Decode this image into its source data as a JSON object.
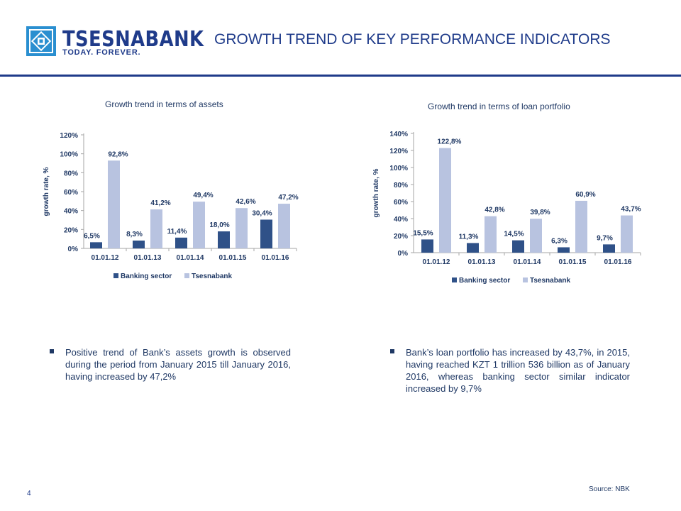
{
  "header": {
    "logo_name": "TSESNABANK",
    "logo_tagline": "TODAY. FOREVER.",
    "title": "GROWTH TREND OF KEY PERFORMANCE INDICATORS"
  },
  "colors": {
    "brand": "#1f3b8a",
    "banking_sector": "#2f5188",
    "tsesnabank": "#b8c3e0",
    "text": "#1f3864"
  },
  "chart_data": [
    {
      "type": "bar",
      "title": "Growth trend in terms of assets",
      "ylabel": "growth rate, %",
      "xlabel": "",
      "categories": [
        "01.01.12",
        "01.01.13",
        "01.01.14",
        "01.01.15",
        "01.01.16"
      ],
      "series": [
        {
          "name": "Banking sector",
          "values": [
            6.5,
            8.3,
            11.4,
            18.0,
            30.4
          ],
          "labels": [
            "6,5%",
            "8,3%",
            "11,4%",
            "18,0%",
            "30,4%"
          ]
        },
        {
          "name": "Tsesnabank",
          "values": [
            92.8,
            41.2,
            49.4,
            42.6,
            47.2
          ],
          "labels": [
            "92,8%",
            "41,2%",
            "49,4%",
            "42,6%",
            "47,2%"
          ]
        }
      ],
      "ylim": [
        0,
        120
      ],
      "yticks": [
        "0%",
        "20%",
        "40%",
        "60%",
        "80%",
        "100%",
        "120%"
      ],
      "legend": "bottom",
      "grid": false
    },
    {
      "type": "bar",
      "title": "Growth trend in terms of loan portfolio",
      "ylabel": "growth rate, %",
      "xlabel": "",
      "categories": [
        "01.01.12",
        "01.01.13",
        "01.01.14",
        "01.01.15",
        "01.01.16"
      ],
      "series": [
        {
          "name": "Banking sector",
          "values": [
            15.5,
            11.3,
            14.5,
            6.3,
            9.7
          ],
          "labels": [
            "15,5%",
            "11,3%",
            "14,5%",
            "6,3%",
            "9,7%"
          ]
        },
        {
          "name": "Tsesnabank",
          "values": [
            122.8,
            42.8,
            39.8,
            60.9,
            43.7
          ],
          "labels": [
            "122,8%",
            "42,8%",
            "39,8%",
            "60,9%",
            "43,7%"
          ]
        }
      ],
      "ylim": [
        0,
        140
      ],
      "yticks": [
        "0%",
        "20%",
        "40%",
        "60%",
        "80%",
        "100%",
        "120%",
        "140%"
      ],
      "legend": "bottom",
      "grid": false
    }
  ],
  "bullets": {
    "left": "Positive trend of Bank’s assets growth is observed during the period from January 2015 till January 2016, having increased by 47,2%",
    "right": "Bank’s loan portfolio has increased by 43,7%, in 2015, having reached KZT 1 trillion 536 billion as of January 2016, whereas banking sector similar indicator increased by 9,7%"
  },
  "footer": {
    "page_number": "4",
    "source": "Source: NBK"
  }
}
